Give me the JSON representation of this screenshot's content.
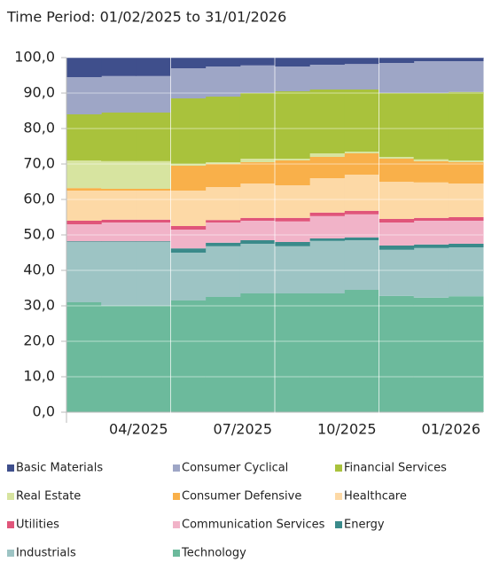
{
  "chart_data": {
    "type": "stacked_area",
    "title": "Time Period: 01/02/2025 to 31/01/2026",
    "categories": [
      null,
      null,
      "04/2025",
      null,
      null,
      "07/2025",
      null,
      null,
      "10/2025",
      null,
      null,
      "01/2026"
    ],
    "ylim": [
      0,
      100
    ],
    "yticks": [
      {
        "value": 0,
        "label": "0,0"
      },
      {
        "value": 10,
        "label": "10,0"
      },
      {
        "value": 20,
        "label": "20,0"
      },
      {
        "value": 30,
        "label": "30,0"
      },
      {
        "value": 40,
        "label": "40,0"
      },
      {
        "value": 50,
        "label": "50,0"
      },
      {
        "value": 60,
        "label": "60,0"
      },
      {
        "value": 70,
        "label": "70,0"
      },
      {
        "value": 80,
        "label": "80,0"
      },
      {
        "value": 90,
        "label": "90,0"
      },
      {
        "value": 100,
        "label": "100,0"
      }
    ],
    "series": [
      {
        "name": "Basic Materials",
        "color": "#3f4f8c",
        "values": [
          5.5,
          5.2,
          5.2,
          3,
          2.5,
          2.2,
          2.5,
          2,
          1.8,
          1.5,
          1,
          1
        ]
      },
      {
        "name": "Consumer Cyclical",
        "color": "#9ea6c6",
        "values": [
          10.5,
          10.3,
          10.3,
          8.5,
          8.5,
          7.8,
          7,
          7,
          7.2,
          8.5,
          9,
          8.7
        ]
      },
      {
        "name": "Financial Services",
        "color": "#a9c23c",
        "values": [
          13,
          13.7,
          13.7,
          18.5,
          18.5,
          18.5,
          19,
          18,
          17.5,
          18,
          18.7,
          19.3
        ]
      },
      {
        "name": "Real Estate",
        "color": "#d7e4a0",
        "values": [
          7.8,
          7.8,
          7.8,
          0.5,
          0.5,
          1,
          0.5,
          1,
          0.5,
          0.5,
          0.5,
          0.5
        ]
      },
      {
        "name": "Consumer Defensive",
        "color": "#f9b04a",
        "values": [
          0.7,
          0.5,
          0.5,
          7,
          6.5,
          6,
          7,
          6,
          6,
          6.5,
          6,
          6
        ]
      },
      {
        "name": "Healthcare",
        "color": "#fdd9a6",
        "values": [
          8.5,
          8.2,
          8.2,
          10,
          9.3,
          9.7,
          9.2,
          9.7,
          10.2,
          10.5,
          10,
          9.5
        ]
      },
      {
        "name": "Utilities",
        "color": "#e0557a",
        "values": [
          1,
          0.8,
          0.8,
          1,
          0.7,
          0.8,
          1,
          1,
          1,
          1,
          0.8,
          1
        ]
      },
      {
        "name": "Communication Services",
        "color": "#f1b3c8",
        "values": [
          4.8,
          5.3,
          5.3,
          5.3,
          5.7,
          5.5,
          5.8,
          6.3,
          6.5,
          6.5,
          6.7,
          6.5
        ]
      },
      {
        "name": "Energy",
        "color": "#3a8a8a",
        "values": [
          0.2,
          0.2,
          0.2,
          1.2,
          1,
          1,
          1.2,
          0.7,
          0.8,
          1.2,
          1,
          1
        ]
      },
      {
        "name": "Industrials",
        "color": "#9dc4c4",
        "values": [
          17,
          18,
          18,
          13.5,
          14.3,
          14,
          13.3,
          14.8,
          14,
          13,
          14,
          13.8
        ]
      },
      {
        "name": "Technology",
        "color": "#6cba9c",
        "values": [
          31,
          30,
          30,
          31.5,
          32.5,
          33.5,
          33.5,
          33.5,
          34.5,
          32.8,
          32.3,
          32.7
        ]
      }
    ]
  }
}
